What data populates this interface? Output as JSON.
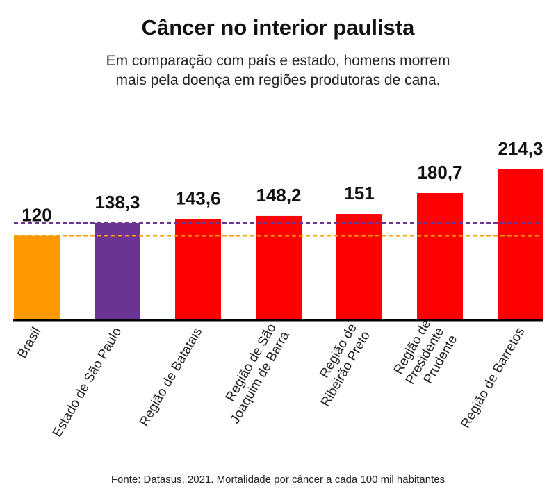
{
  "title": "Câncer no interior paulista",
  "subtitle_lines": [
    "Em comparação com país e estado, homens morrem",
    "mais pela doença em regiões produtoras de cana."
  ],
  "source": "Fonte: Datasus, 2021. Mortalidade por câncer a cada 100 mil habitantes",
  "colors": {
    "brasil": "#ff9900",
    "estado": "#6b3393",
    "regiao": "#ff0000",
    "axis": "#000000"
  },
  "chart_data": {
    "type": "bar",
    "categories": [
      [
        "Brasil"
      ],
      [
        "Estado de São Paulo"
      ],
      [
        "Região de Batatais"
      ],
      [
        "Região de São",
        "Joaquim de Barra"
      ],
      [
        "Região de",
        "Ribeirão Preto"
      ],
      [
        "Região de",
        "Presidente",
        "Prudente"
      ],
      [
        "Região de Barretos"
      ]
    ],
    "values": [
      120,
      138.3,
      143.6,
      148.2,
      151,
      180.7,
      214.3
    ],
    "value_labels": [
      "120",
      "138,3",
      "143,6",
      "148,2",
      "151",
      "180,7",
      "214,3"
    ],
    "bar_colors": [
      "#ff9900",
      "#6b3393",
      "#ff0000",
      "#ff0000",
      "#ff0000",
      "#ff0000",
      "#ff0000"
    ],
    "reference_lines": [
      {
        "value": 120,
        "color": "#ff9900",
        "style": "dashed"
      },
      {
        "value": 138.3,
        "color": "#6b3393",
        "style": "dashed"
      }
    ],
    "ylim": [
      0,
      214.3
    ],
    "grid": false,
    "legend": "none"
  }
}
